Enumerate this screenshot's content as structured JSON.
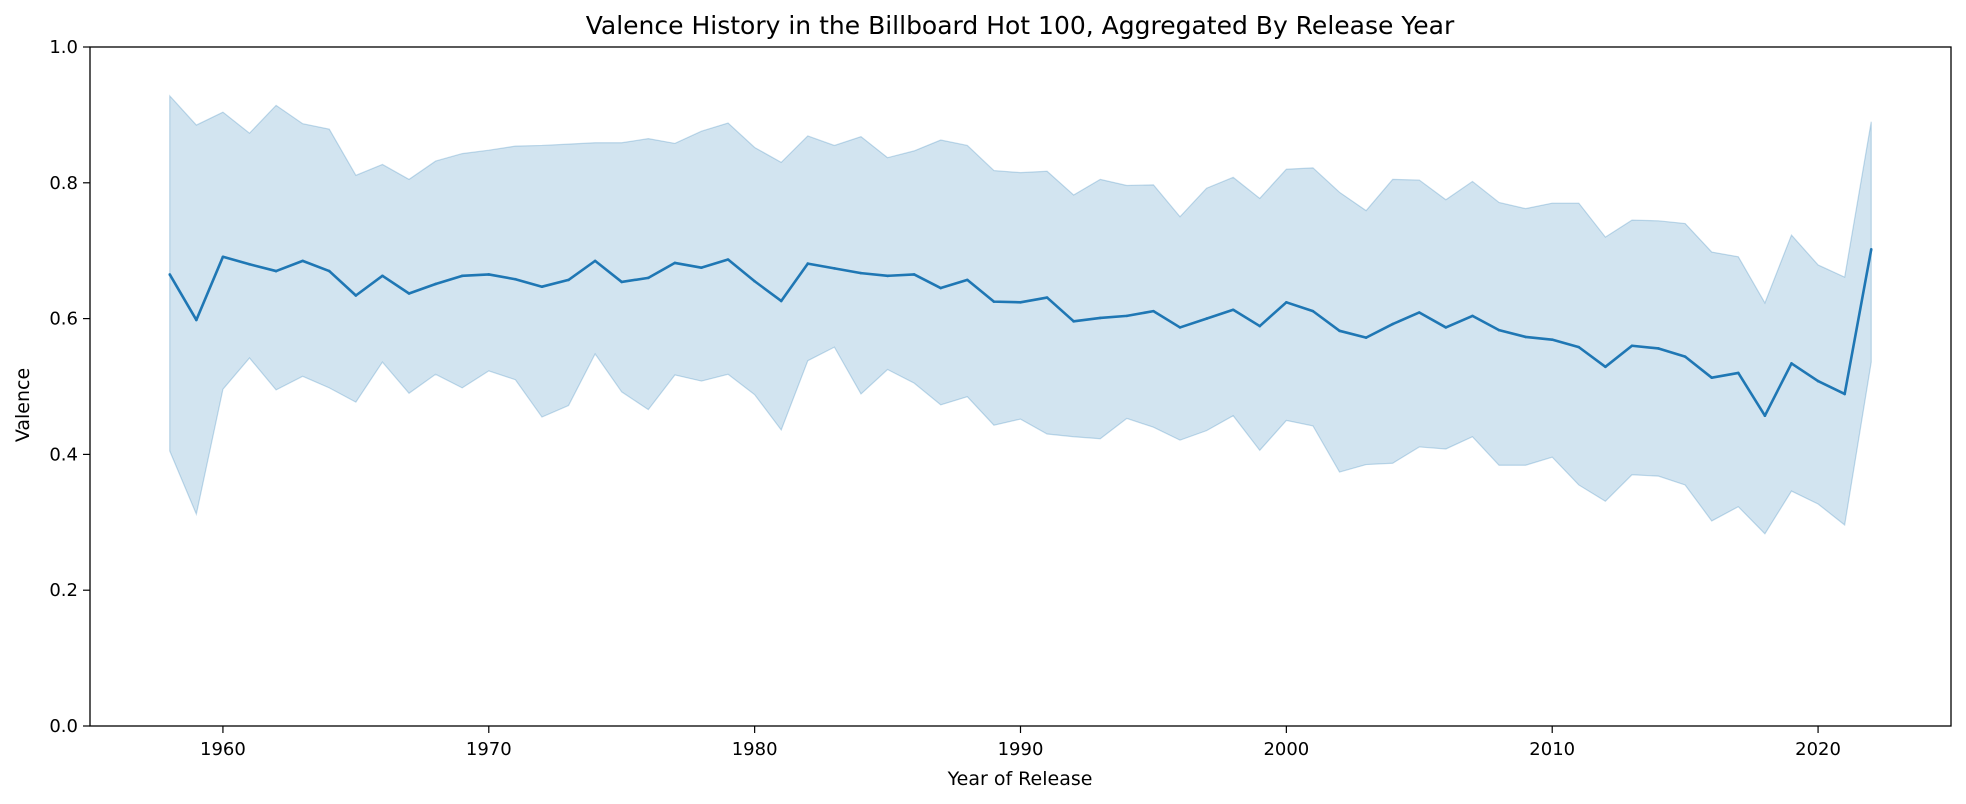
{
  "chart_data": {
    "type": "line",
    "title": "Valence History in the Billboard Hot 100, Aggregated By Release Year",
    "xlabel": "Year of Release",
    "ylabel": "Valence",
    "xlim": [
      1955,
      2025
    ],
    "ylim": [
      0.0,
      1.0
    ],
    "xticks": [
      1960,
      1970,
      1980,
      1990,
      2000,
      2010,
      2020
    ],
    "yticks": [
      0.0,
      0.2,
      0.4,
      0.6,
      0.8,
      1.0
    ],
    "xtick_labels": [
      "1960",
      "1970",
      "1980",
      "1990",
      "2000",
      "2010",
      "2020"
    ],
    "ytick_labels": [
      "0.0",
      "0.2",
      "0.4",
      "0.6",
      "0.8",
      "1.0"
    ],
    "grid": false,
    "colors": {
      "line": "#1f77b4",
      "band": "#1f77b4"
    },
    "series": [
      {
        "x": [
          1958,
          1959,
          1960,
          1961,
          1962,
          1963,
          1964,
          1965,
          1966,
          1967,
          1968,
          1969,
          1970,
          1971,
          1972,
          1973,
          1974,
          1975,
          1976,
          1977,
          1978,
          1979,
          1980,
          1981,
          1982,
          1983,
          1984,
          1985,
          1986,
          1987,
          1988,
          1989,
          1990,
          1991,
          1992,
          1993,
          1994,
          1995,
          1996,
          1997,
          1998,
          1999,
          2000,
          2001,
          2002,
          2003,
          2004,
          2005,
          2006,
          2007,
          2008,
          2009,
          2010,
          2011,
          2012,
          2013,
          2014,
          2015,
          2016,
          2017,
          2018,
          2019,
          2020,
          2021,
          2022
        ],
        "y": [
          0.665,
          0.598,
          0.691,
          0.68,
          0.67,
          0.685,
          0.67,
          0.634,
          0.663,
          0.637,
          0.651,
          0.663,
          0.665,
          0.658,
          0.647,
          0.657,
          0.685,
          0.654,
          0.66,
          0.682,
          0.675,
          0.687,
          0.655,
          0.626,
          0.681,
          0.674,
          0.667,
          0.663,
          0.665,
          0.645,
          0.657,
          0.625,
          0.624,
          0.631,
          0.596,
          0.601,
          0.604,
          0.611,
          0.587,
          0.6,
          0.613,
          0.589,
          0.624,
          0.611,
          0.582,
          0.572,
          0.592,
          0.609,
          0.587,
          0.604,
          0.583,
          0.573,
          0.569,
          0.558,
          0.529,
          0.56,
          0.556,
          0.544,
          0.513,
          0.52,
          0.457,
          0.534,
          0.508,
          0.489,
          0.702
        ],
        "lower": [
          0.405,
          0.312,
          0.496,
          0.542,
          0.495,
          0.515,
          0.498,
          0.477,
          0.536,
          0.49,
          0.518,
          0.498,
          0.523,
          0.51,
          0.455,
          0.472,
          0.548,
          0.492,
          0.466,
          0.517,
          0.508,
          0.518,
          0.488,
          0.436,
          0.538,
          0.558,
          0.489,
          0.525,
          0.505,
          0.473,
          0.485,
          0.443,
          0.452,
          0.43,
          0.426,
          0.423,
          0.453,
          0.44,
          0.421,
          0.435,
          0.457,
          0.406,
          0.45,
          0.442,
          0.374,
          0.385,
          0.387,
          0.411,
          0.408,
          0.426,
          0.384,
          0.384,
          0.396,
          0.355,
          0.331,
          0.37,
          0.368,
          0.355,
          0.302,
          0.323,
          0.283,
          0.346,
          0.327,
          0.296,
          0.536
        ],
        "upper": [
          0.928,
          0.885,
          0.904,
          0.873,
          0.914,
          0.887,
          0.879,
          0.811,
          0.827,
          0.805,
          0.832,
          0.843,
          0.848,
          0.854,
          0.855,
          0.857,
          0.859,
          0.859,
          0.865,
          0.858,
          0.876,
          0.888,
          0.852,
          0.83,
          0.869,
          0.855,
          0.868,
          0.837,
          0.847,
          0.863,
          0.855,
          0.818,
          0.815,
          0.817,
          0.782,
          0.805,
          0.796,
          0.797,
          0.75,
          0.792,
          0.808,
          0.777,
          0.82,
          0.822,
          0.786,
          0.759,
          0.805,
          0.804,
          0.775,
          0.802,
          0.771,
          0.762,
          0.77,
          0.77,
          0.72,
          0.745,
          0.744,
          0.74,
          0.698,
          0.691,
          0.623,
          0.723,
          0.679,
          0.661,
          0.89
        ]
      }
    ]
  }
}
